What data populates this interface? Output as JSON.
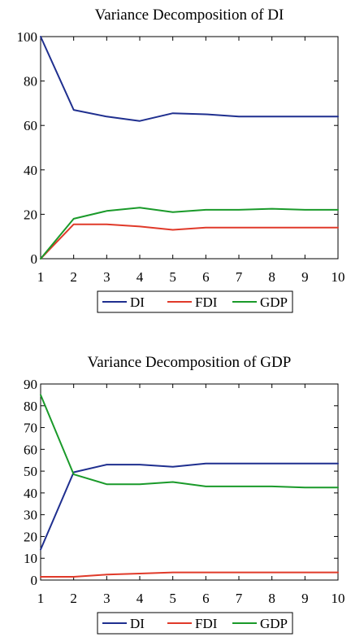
{
  "chart_data": [
    {
      "type": "line",
      "title": "Variance Decomposition of DI",
      "xlabel": "",
      "ylabel": "",
      "x": [
        1,
        2,
        3,
        4,
        5,
        6,
        7,
        8,
        9,
        10
      ],
      "xlim": [
        1,
        10
      ],
      "ylim": [
        0,
        100
      ],
      "yticks": [
        0,
        20,
        40,
        60,
        80,
        100
      ],
      "xticks": [
        1,
        2,
        3,
        4,
        5,
        6,
        7,
        8,
        9,
        10
      ],
      "grid": false,
      "legend_position": "bottom",
      "series": [
        {
          "name": "DI",
          "color": "#1f2f8f",
          "values": [
            100,
            67,
            64,
            62,
            65.5,
            65,
            64,
            64,
            64,
            64
          ]
        },
        {
          "name": "FDI",
          "color": "#e03a2a",
          "values": [
            0,
            15.5,
            15.5,
            14.5,
            13,
            14,
            14,
            14,
            14,
            14
          ]
        },
        {
          "name": "GDP",
          "color": "#1a9a2a",
          "values": [
            0,
            18,
            21.5,
            23,
            21,
            22,
            22,
            22.5,
            22,
            22
          ]
        }
      ]
    },
    {
      "type": "line",
      "title": "Variance Decomposition of GDP",
      "xlabel": "",
      "ylabel": "",
      "x": [
        1,
        2,
        3,
        4,
        5,
        6,
        7,
        8,
        9,
        10
      ],
      "xlim": [
        1,
        10
      ],
      "ylim": [
        0,
        90
      ],
      "yticks": [
        0,
        10,
        20,
        30,
        40,
        50,
        60,
        70,
        80,
        90
      ],
      "xticks": [
        1,
        2,
        3,
        4,
        5,
        6,
        7,
        8,
        9,
        10
      ],
      "grid": false,
      "legend_position": "bottom",
      "series": [
        {
          "name": "DI",
          "color": "#1f2f8f",
          "values": [
            14,
            49.5,
            53,
            53,
            52,
            53.5,
            53.5,
            53.5,
            53.5,
            53.5
          ]
        },
        {
          "name": "FDI",
          "color": "#e03a2a",
          "values": [
            1.5,
            1.5,
            2.5,
            3,
            3.5,
            3.5,
            3.5,
            3.5,
            3.5,
            3.5
          ]
        },
        {
          "name": "GDP",
          "color": "#1a9a2a",
          "values": [
            85,
            48.5,
            44,
            44,
            45,
            43,
            43,
            43,
            42.5,
            42.5
          ]
        }
      ]
    }
  ]
}
